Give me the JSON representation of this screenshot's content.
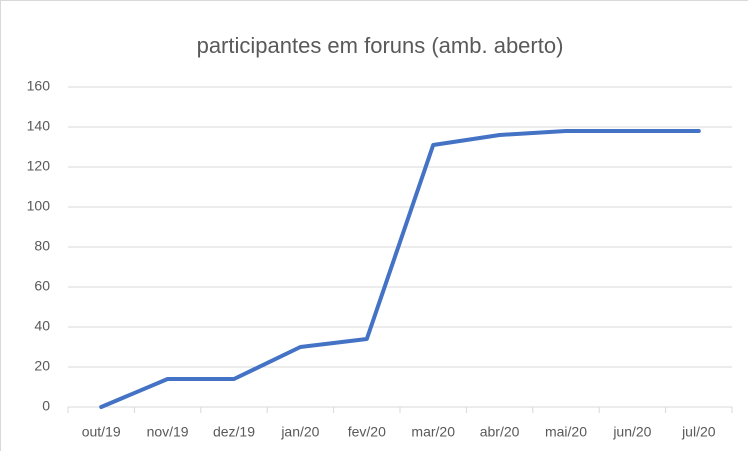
{
  "chart_data": {
    "type": "line",
    "title": "participantes em foruns (amb. aberto)",
    "categories": [
      "out/19",
      "nov/19",
      "dez/19",
      "jan/20",
      "fev/20",
      "mar/20",
      "abr/20",
      "mai/20",
      "jun/20",
      "jul/20"
    ],
    "series": [
      {
        "name": "participantes",
        "color": "#4472c4",
        "values": [
          0,
          14,
          14,
          30,
          34,
          131,
          136,
          138,
          138,
          138
        ]
      }
    ],
    "ylim": [
      0,
      160
    ],
    "yticks": [
      0,
      20,
      40,
      60,
      80,
      100,
      120,
      140,
      160
    ],
    "grid": true
  }
}
